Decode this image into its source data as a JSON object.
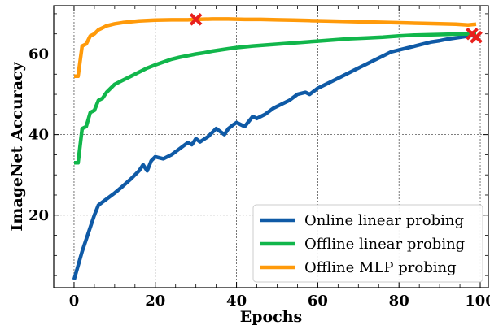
{
  "chart_data": {
    "type": "line",
    "title": "",
    "xlabel": "Epochs",
    "ylabel": "ImageNet Accuracy",
    "xlim": [
      -5,
      102
    ],
    "ylim": [
      2,
      72
    ],
    "xticks": [
      0,
      20,
      40,
      60,
      80,
      100
    ],
    "yticks": [
      20,
      40,
      60
    ],
    "grid": true,
    "legend_position": "lower-right",
    "series": [
      {
        "name": "Online linear probing",
        "color": "#0f5aa6",
        "points": [
          [
            0,
            4
          ],
          [
            2,
            11
          ],
          [
            4,
            17
          ],
          [
            5,
            20
          ],
          [
            6,
            22.5
          ],
          [
            8,
            24
          ],
          [
            10,
            25.5
          ],
          [
            12,
            27.2
          ],
          [
            14,
            29
          ],
          [
            16,
            31
          ],
          [
            17,
            32.5
          ],
          [
            18,
            31
          ],
          [
            19,
            33.5
          ],
          [
            20,
            34.5
          ],
          [
            22,
            34
          ],
          [
            24,
            35
          ],
          [
            26,
            36.5
          ],
          [
            28,
            38
          ],
          [
            29,
            37.5
          ],
          [
            30,
            39
          ],
          [
            31,
            38.2
          ],
          [
            33,
            39.5
          ],
          [
            35,
            41.5
          ],
          [
            37,
            40
          ],
          [
            38,
            41.5
          ],
          [
            39,
            42.3
          ],
          [
            40,
            43
          ],
          [
            42,
            42
          ],
          [
            44,
            44.5
          ],
          [
            45,
            44
          ],
          [
            47,
            45
          ],
          [
            49,
            46.5
          ],
          [
            51,
            47.5
          ],
          [
            53,
            48.5
          ],
          [
            55,
            50
          ],
          [
            57,
            50.5
          ],
          [
            58,
            50
          ],
          [
            60,
            51.5
          ],
          [
            62,
            52.5
          ],
          [
            64,
            53.5
          ],
          [
            66,
            54.5
          ],
          [
            68,
            55.5
          ],
          [
            70,
            56.5
          ],
          [
            72,
            57.5
          ],
          [
            74,
            58.5
          ],
          [
            76,
            59.5
          ],
          [
            78,
            60.5
          ],
          [
            80,
            61
          ],
          [
            82,
            61.5
          ],
          [
            84,
            62
          ],
          [
            86,
            62.5
          ],
          [
            88,
            63
          ],
          [
            90,
            63.3
          ],
          [
            92,
            63.7
          ],
          [
            94,
            64
          ],
          [
            96,
            64.3
          ],
          [
            98,
            64.6
          ],
          [
            99,
            64.2
          ]
        ],
        "marker": [
          99,
          64.2
        ]
      },
      {
        "name": "Offline linear probing",
        "color": "#11b64b",
        "points": [
          [
            0,
            33
          ],
          [
            1,
            33
          ],
          [
            2,
            41.5
          ],
          [
            3,
            42
          ],
          [
            4,
            45.5
          ],
          [
            5,
            46
          ],
          [
            6,
            48.5
          ],
          [
            7,
            49
          ],
          [
            8,
            50.5
          ],
          [
            9,
            51.5
          ],
          [
            10,
            52.5
          ],
          [
            12,
            53.5
          ],
          [
            14,
            54.5
          ],
          [
            16,
            55.5
          ],
          [
            18,
            56.5
          ],
          [
            20,
            57.3
          ],
          [
            22,
            58
          ],
          [
            24,
            58.7
          ],
          [
            26,
            59.2
          ],
          [
            28,
            59.6
          ],
          [
            30,
            60
          ],
          [
            32,
            60.3
          ],
          [
            34,
            60.7
          ],
          [
            36,
            61
          ],
          [
            38,
            61.3
          ],
          [
            40,
            61.6
          ],
          [
            44,
            62
          ],
          [
            48,
            62.3
          ],
          [
            52,
            62.6
          ],
          [
            56,
            62.9
          ],
          [
            60,
            63.2
          ],
          [
            64,
            63.5
          ],
          [
            68,
            63.8
          ],
          [
            72,
            64
          ],
          [
            76,
            64.2
          ],
          [
            80,
            64.5
          ],
          [
            84,
            64.7
          ],
          [
            88,
            64.8
          ],
          [
            92,
            64.9
          ],
          [
            96,
            65
          ],
          [
            99,
            65
          ]
        ],
        "marker": [
          98,
          65
        ]
      },
      {
        "name": "Offline MLP probing",
        "color": "#ff9a0a",
        "points": [
          [
            0,
            54.5
          ],
          [
            1,
            54.5
          ],
          [
            2,
            62
          ],
          [
            3,
            62.5
          ],
          [
            4,
            64.5
          ],
          [
            5,
            65
          ],
          [
            6,
            66
          ],
          [
            7,
            66.5
          ],
          [
            8,
            67
          ],
          [
            10,
            67.5
          ],
          [
            12,
            67.8
          ],
          [
            14,
            68
          ],
          [
            16,
            68.2
          ],
          [
            18,
            68.3
          ],
          [
            20,
            68.4
          ],
          [
            24,
            68.5
          ],
          [
            28,
            68.5
          ],
          [
            30,
            68.6
          ],
          [
            34,
            68.7
          ],
          [
            38,
            68.7
          ],
          [
            42,
            68.6
          ],
          [
            46,
            68.6
          ],
          [
            50,
            68.5
          ],
          [
            54,
            68.4
          ],
          [
            58,
            68.3
          ],
          [
            62,
            68.2
          ],
          [
            66,
            68.1
          ],
          [
            70,
            68
          ],
          [
            74,
            67.9
          ],
          [
            78,
            67.8
          ],
          [
            82,
            67.7
          ],
          [
            86,
            67.6
          ],
          [
            90,
            67.5
          ],
          [
            94,
            67.4
          ],
          [
            97,
            67.2
          ],
          [
            99,
            67.4
          ]
        ],
        "marker": [
          30,
          68.6
        ]
      }
    ]
  }
}
